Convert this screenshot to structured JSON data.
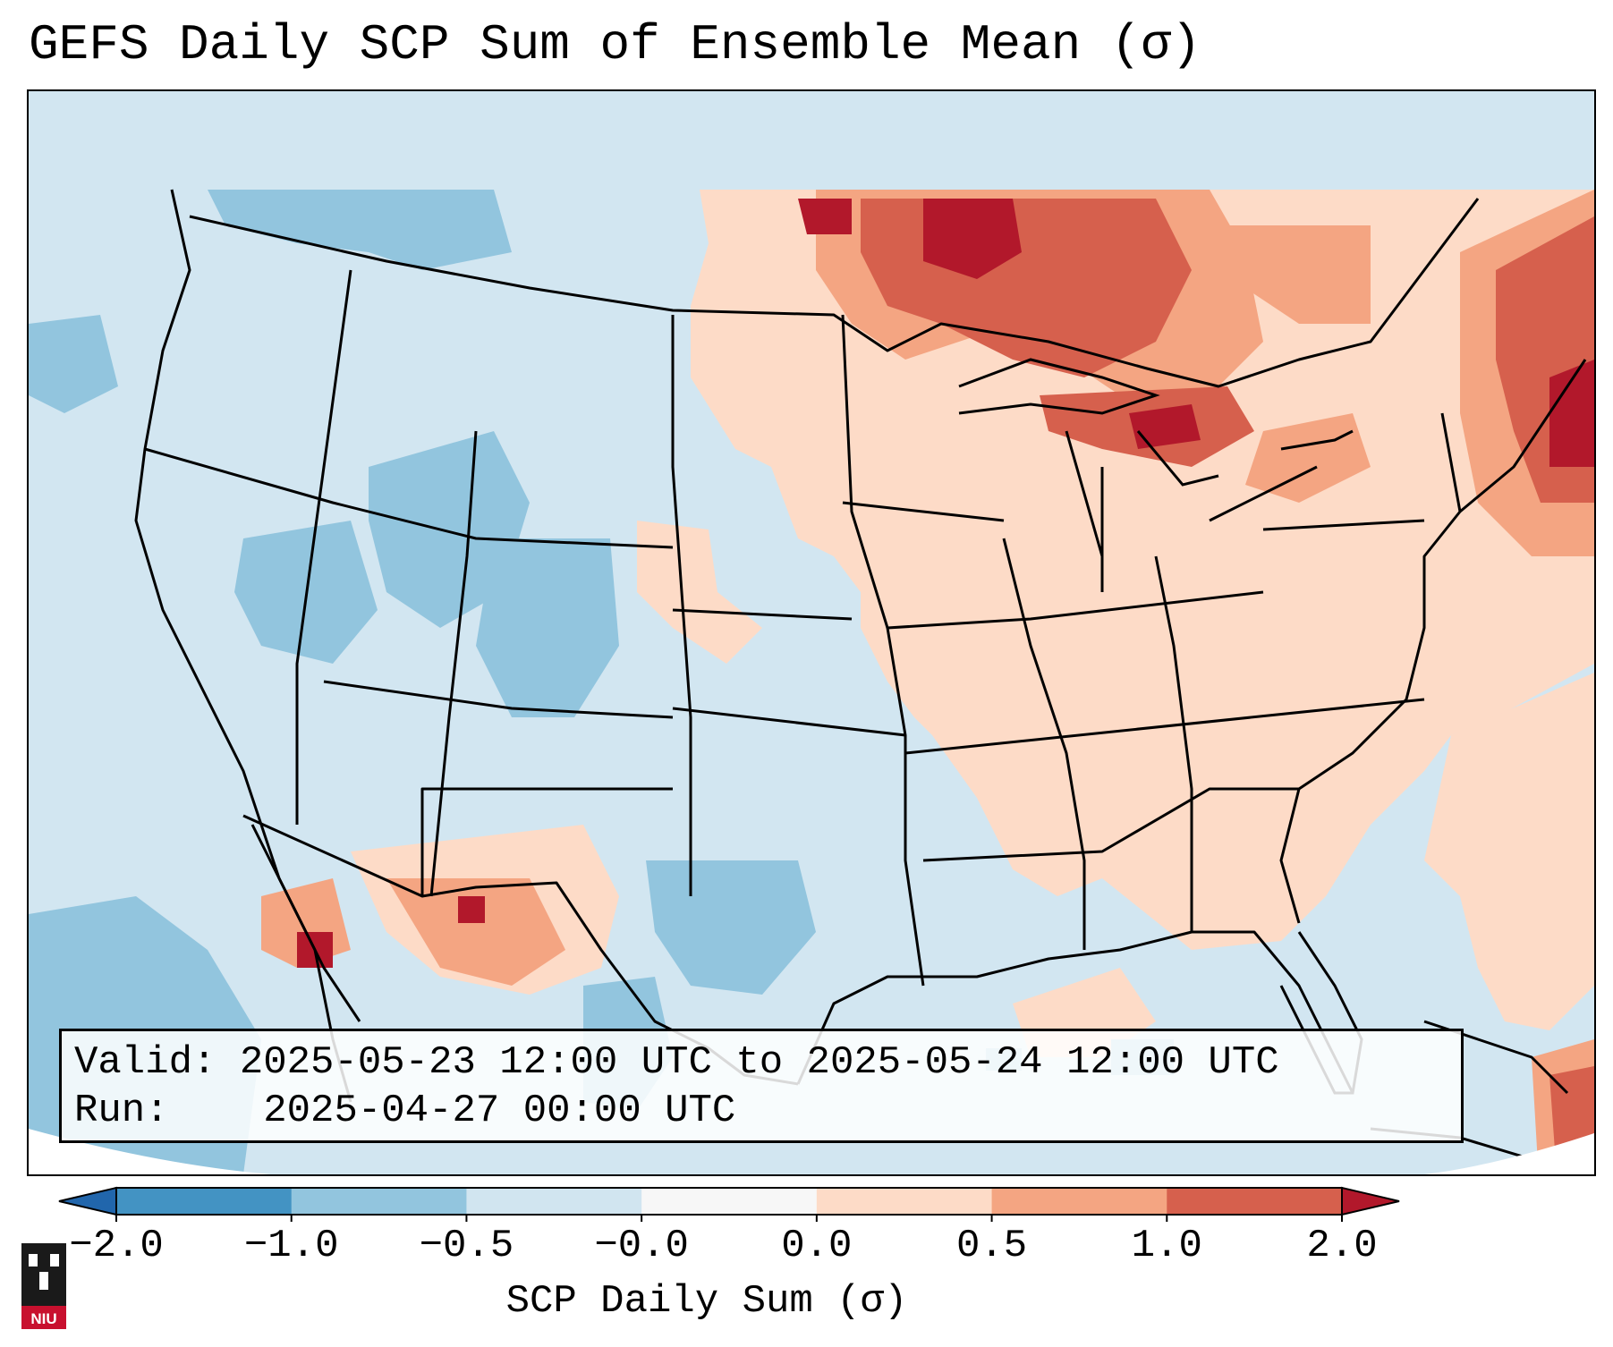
{
  "title": "GEFS Daily SCP Sum of Ensemble Mean (σ)",
  "info": {
    "valid_label": "Valid:",
    "valid_value": "2025-05-23 12:00 UTC to 2025-05-24 12:00 UTC",
    "run_label": "Run:",
    "run_value": "2025-04-27 00:00 UTC"
  },
  "colorbar": {
    "label": "SCP Daily Sum (σ)",
    "ticks": [
      "−2.0",
      "−1.0",
      "−0.5",
      "−0.0",
      "0.0",
      "0.5",
      "1.0",
      "2.0"
    ],
    "colors": [
      "#4393c3",
      "#92c5de",
      "#d1e5f0",
      "#f7f7f7",
      "#fddbc7",
      "#f4a582",
      "#d6604d"
    ],
    "under_color": "#2166ac",
    "over_color": "#b2182b"
  },
  "map": {
    "background_color": "#d2e6f1",
    "region": "Contiguous United States, northern Mexico, Gulf of Mexico, Caribbean"
  },
  "logo": {
    "name": "niu-logo",
    "text": "NIU"
  }
}
